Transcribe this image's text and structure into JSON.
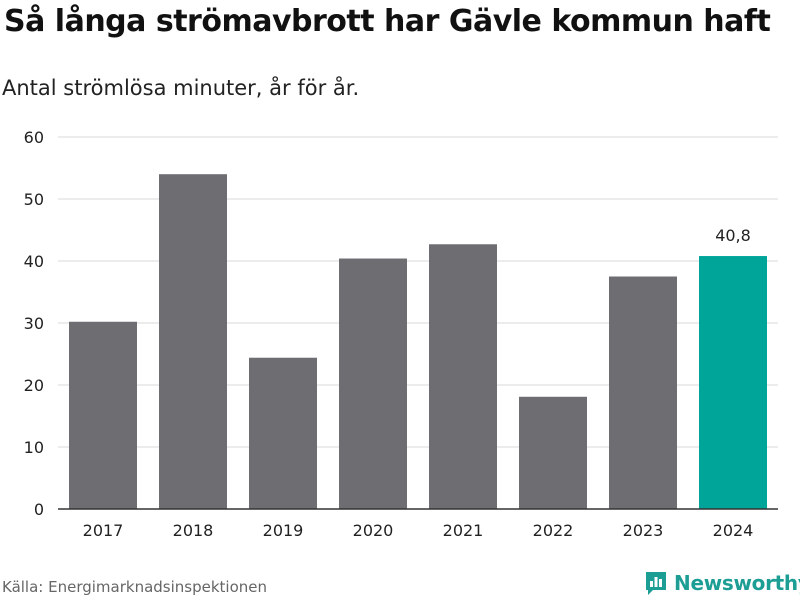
{
  "header": {
    "title": "Så långa strömavbrott har Gävle kommun haft",
    "subtitle": "Antal strömlösa minuter, år för år."
  },
  "footer": {
    "source": "Källa: Energimarknadsinspektionen",
    "brand": "Newsworthy"
  },
  "colors": {
    "bar": "#6e6d72",
    "highlight": "#00a59a",
    "grid": "#d9d9d9",
    "axis": "#333333",
    "brand": "#1c9e95"
  },
  "chart_data": {
    "type": "bar",
    "categories": [
      "2017",
      "2018",
      "2019",
      "2020",
      "2021",
      "2022",
      "2023",
      "2024"
    ],
    "values": [
      30.2,
      54.0,
      24.4,
      40.4,
      42.7,
      18.1,
      37.5,
      40.8
    ],
    "highlight_index": 7,
    "data_labels": [
      {
        "index": 7,
        "text": "40,8"
      }
    ],
    "yticks": [
      0,
      10,
      20,
      30,
      40,
      50,
      60
    ],
    "ylim": [
      0,
      60
    ],
    "grid": true,
    "legend": "none"
  }
}
